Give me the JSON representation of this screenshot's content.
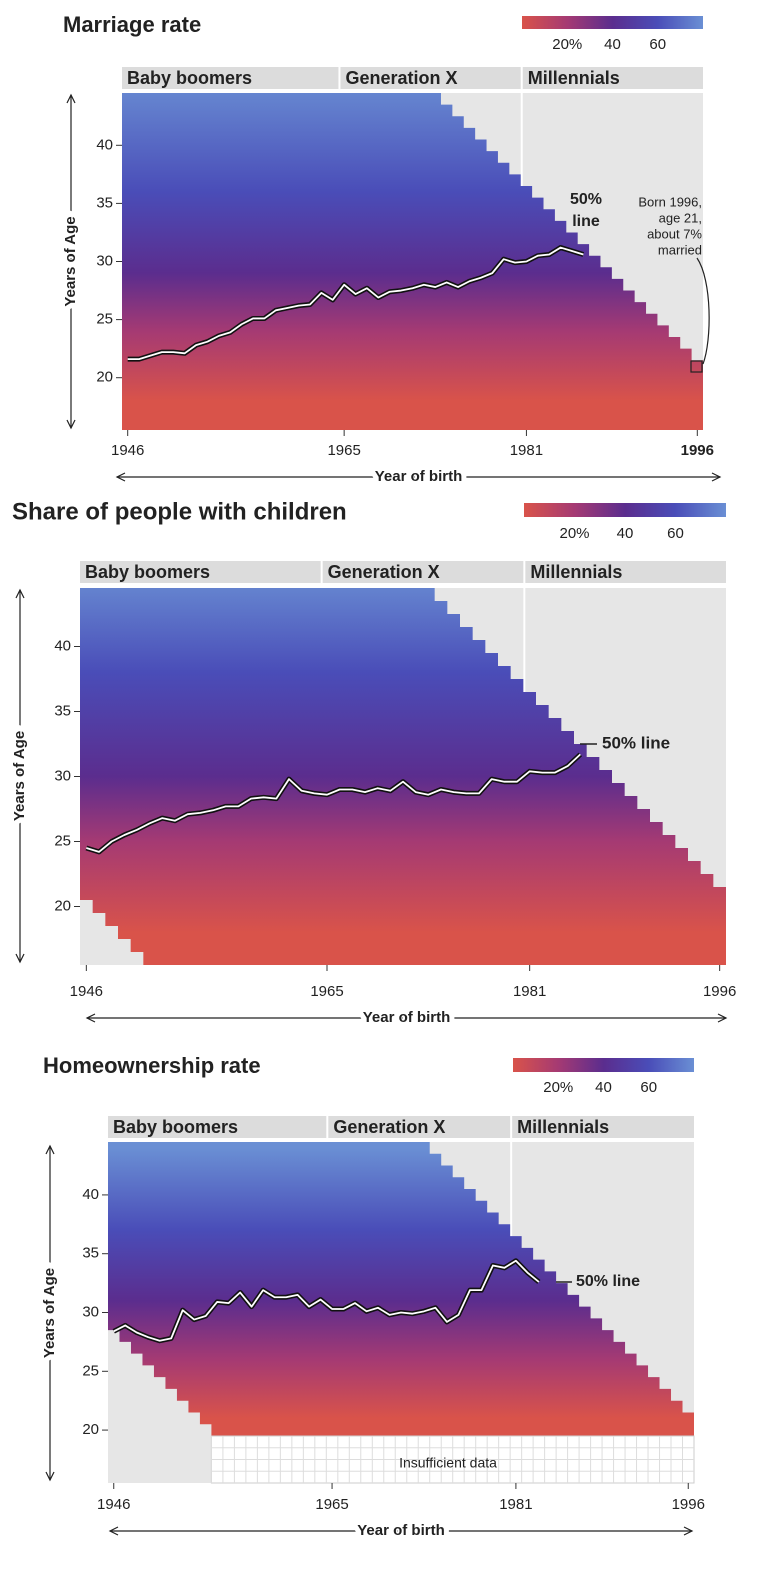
{
  "chart_data": [
    {
      "type": "heatmap",
      "title": "Marriage rate",
      "colorbar": {
        "colors": [
          "#d9534a",
          "#a53a73",
          "#5b2d8e",
          "#4a4db8",
          "#6a8fd4"
        ],
        "clim": [
          0,
          80
        ],
        "ticks": [
          {
            "value": 20,
            "label": "20%"
          },
          40,
          60
        ]
      },
      "generations": [
        {
          "name": "Baby boomers",
          "start": 1946
        },
        {
          "name": "Generation X",
          "start": 1965
        },
        {
          "name": "Millennials",
          "start": 1981
        }
      ],
      "xlim": [
        1945.5,
        1996.5
      ],
      "xticks": [
        1946,
        1965,
        1981,
        1996
      ],
      "ylim": [
        15.5,
        44.5
      ],
      "yticks": [
        20,
        25,
        30,
        35,
        40
      ],
      "xlabel": "Year of birth",
      "ylabel": "Years of Age",
      "series": [
        {
          "x": [
            1946,
            1947,
            1948,
            1949,
            1950,
            1951,
            1952,
            1953,
            1954,
            1955,
            1956,
            1957,
            1958,
            1959,
            1960,
            1961,
            1962,
            1963,
            1964,
            1965,
            1966,
            1967,
            1968,
            1969,
            1970,
            1971,
            1972,
            1973,
            1974,
            1975,
            1976,
            1977,
            1978,
            1979,
            1980,
            1981,
            1982,
            1983,
            1984,
            1985,
            1986
          ],
          "values": [
            21.6,
            21.6,
            21.9,
            22.2,
            22.2,
            22.1,
            22.8,
            23.1,
            23.6,
            23.9,
            24.6,
            25.1,
            25.1,
            25.8,
            26.0,
            26.2,
            26.3,
            27.3,
            26.7,
            28.0,
            27.2,
            27.7,
            26.9,
            27.4,
            27.5,
            27.7,
            28.0,
            27.8,
            28.2,
            27.8,
            28.3,
            28.6,
            29.0,
            30.2,
            29.9,
            30.0,
            30.5,
            30.6,
            31.2,
            30.9,
            30.6
          ]
        }
      ],
      "annotations": [
        {
          "lines": [
            "50%",
            "line"
          ]
        },
        {
          "lines": [
            "Born 1996,",
            "age 21,",
            "about 7%",
            "married"
          ]
        }
      ]
    },
    {
      "type": "heatmap",
      "title": "Share of people with children",
      "colorbar": {
        "colors": [
          "#d9534a",
          "#a53a73",
          "#5b2d8e",
          "#4a4db8",
          "#6a8fd4"
        ],
        "clim": [
          0,
          80
        ],
        "ticks": [
          {
            "value": 20,
            "label": "20%"
          },
          40,
          60
        ]
      },
      "generations": [
        {
          "name": "Baby boomers",
          "start": 1946
        },
        {
          "name": "Generation X",
          "start": 1965
        },
        {
          "name": "Millennials",
          "start": 1981
        }
      ],
      "xlim": [
        1945.5,
        1996.5
      ],
      "xticks": [
        1946,
        1965,
        1981,
        1996
      ],
      "ylim": [
        15.5,
        44.5
      ],
      "yticks": [
        20,
        25,
        30,
        35,
        40
      ],
      "xlabel": "Year of birth",
      "ylabel": "Years of Age",
      "series": [
        {
          "x": [
            1946,
            1947,
            1948,
            1949,
            1950,
            1951,
            1952,
            1953,
            1954,
            1955,
            1956,
            1957,
            1958,
            1959,
            1960,
            1961,
            1962,
            1963,
            1964,
            1965,
            1966,
            1967,
            1968,
            1969,
            1970,
            1971,
            1972,
            1973,
            1974,
            1975,
            1976,
            1977,
            1978,
            1979,
            1980,
            1981,
            1982,
            1983,
            1984,
            1985
          ],
          "values": [
            24.5,
            24.2,
            25.0,
            25.5,
            25.9,
            26.4,
            26.8,
            26.6,
            27.1,
            27.2,
            27.4,
            27.7,
            27.7,
            28.3,
            28.4,
            28.3,
            29.8,
            28.9,
            28.7,
            28.6,
            29.0,
            29.0,
            28.8,
            29.1,
            28.9,
            29.6,
            28.8,
            28.6,
            29.0,
            28.8,
            28.7,
            28.7,
            29.8,
            29.6,
            29.6,
            30.4,
            30.3,
            30.3,
            30.8,
            31.7
          ]
        }
      ],
      "annotations": [
        {
          "lines": [
            "50% line"
          ]
        }
      ]
    },
    {
      "type": "heatmap",
      "title": "Homeownership rate",
      "colorbar": {
        "colors": [
          "#d9534a",
          "#a53a73",
          "#5b2d8e",
          "#4a4db8",
          "#6a8fd4"
        ],
        "clim": [
          0,
          80
        ],
        "ticks": [
          {
            "value": 20,
            "label": "20%"
          },
          40,
          60
        ]
      },
      "generations": [
        {
          "name": "Baby boomers",
          "start": 1946
        },
        {
          "name": "Generation X",
          "start": 1965
        },
        {
          "name": "Millennials",
          "start": 1981
        }
      ],
      "xlim": [
        1945.5,
        1996.5
      ],
      "xticks": [
        1946,
        1965,
        1981,
        1996
      ],
      "ylim": [
        15.5,
        44.5
      ],
      "yticks": [
        20,
        25,
        30,
        35,
        40
      ],
      "xlabel": "Year of birth",
      "ylabel": "Years of Age",
      "series": [
        {
          "x": [
            1946,
            1947,
            1948,
            1949,
            1950,
            1951,
            1952,
            1953,
            1954,
            1955,
            1956,
            1957,
            1958,
            1959,
            1960,
            1961,
            1962,
            1963,
            1964,
            1965,
            1966,
            1967,
            1968,
            1969,
            1970,
            1971,
            1972,
            1973,
            1974,
            1975,
            1976,
            1977,
            1978,
            1979,
            1980,
            1981,
            1982,
            1983
          ],
          "values": [
            28.4,
            28.9,
            28.3,
            27.9,
            27.6,
            27.8,
            30.2,
            29.4,
            29.7,
            30.9,
            30.8,
            31.7,
            30.5,
            31.9,
            31.3,
            31.3,
            31.5,
            30.5,
            31.1,
            30.3,
            30.3,
            30.8,
            30.1,
            30.4,
            29.8,
            30.0,
            29.9,
            30.1,
            30.4,
            29.2,
            29.8,
            31.9,
            31.9,
            34.0,
            33.8,
            34.4,
            33.4,
            32.6
          ]
        }
      ],
      "annotations": [
        {
          "lines": [
            "50% line"
          ]
        },
        {
          "lines": [
            "Insufficient data"
          ]
        }
      ]
    }
  ]
}
